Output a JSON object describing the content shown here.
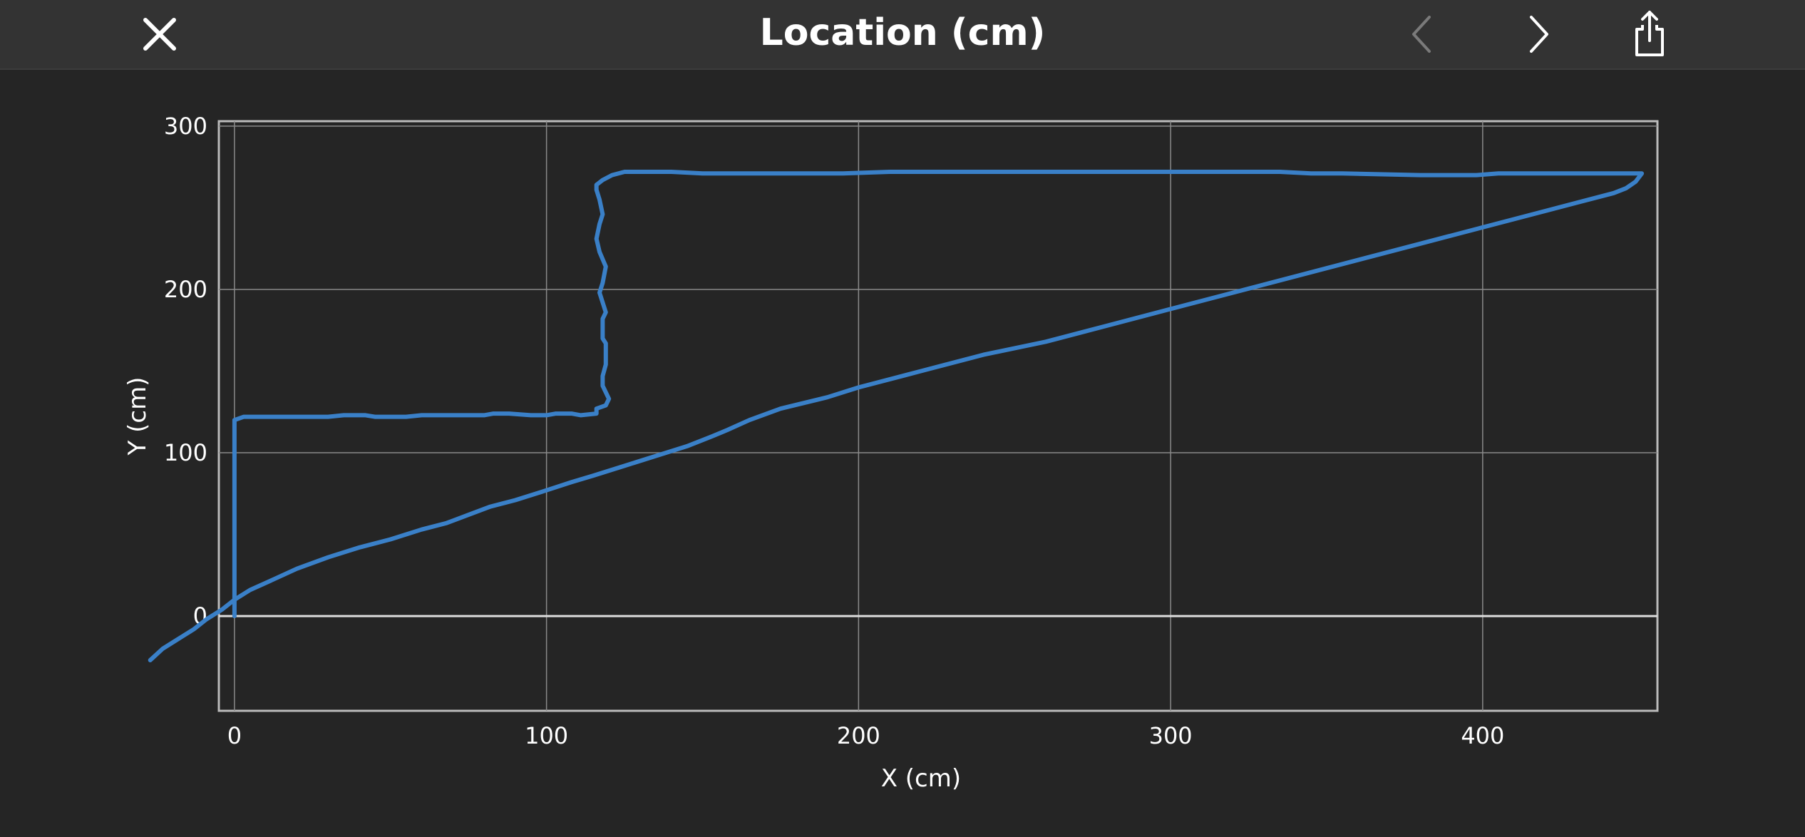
{
  "topbar": {
    "title": "Location (cm)",
    "close_icon": "close-icon",
    "prev_icon": "chevron-left-icon",
    "next_icon": "chevron-right-icon",
    "share_icon": "share-icon"
  },
  "colors": {
    "background": "#252525",
    "topbar": "#333333",
    "line": "#3a80c8",
    "grid": "#8a8a8a",
    "prev_disabled": "#7a7a7a"
  },
  "chart_data": {
    "type": "line",
    "xlabel": "X (cm)",
    "ylabel": "Y (cm)",
    "xlim": [
      -5,
      456
    ],
    "ylim": [
      -58,
      303
    ],
    "xticks": [
      0,
      100,
      200,
      300,
      400
    ],
    "yticks": [
      0,
      100,
      200,
      300
    ],
    "grid": true,
    "series": [
      {
        "points": [
          [
            0,
            0
          ],
          [
            0,
            120
          ],
          [
            3,
            122
          ],
          [
            30,
            122
          ],
          [
            35,
            123
          ],
          [
            42,
            123
          ],
          [
            45,
            122
          ],
          [
            55,
            122
          ],
          [
            60,
            123
          ],
          [
            80,
            123
          ],
          [
            83,
            124
          ],
          [
            88,
            124
          ],
          [
            95,
            123
          ],
          [
            100,
            123
          ],
          [
            103,
            124
          ],
          [
            108,
            124
          ],
          [
            111,
            123
          ],
          [
            116,
            124
          ],
          [
            116,
            127
          ],
          [
            119,
            129
          ],
          [
            120,
            133
          ],
          [
            118,
            141
          ],
          [
            118,
            147
          ],
          [
            119,
            154
          ],
          [
            119,
            167
          ],
          [
            118,
            170
          ],
          [
            118,
            182
          ],
          [
            119,
            186
          ],
          [
            117,
            198
          ],
          [
            118,
            204
          ],
          [
            119,
            214
          ],
          [
            117,
            223
          ],
          [
            116,
            231
          ],
          [
            117,
            240
          ],
          [
            118,
            246
          ],
          [
            117,
            255
          ],
          [
            116,
            261
          ],
          [
            116,
            264
          ],
          [
            118,
            267
          ],
          [
            121,
            270
          ],
          [
            125,
            272
          ],
          [
            140,
            272
          ],
          [
            150,
            271
          ],
          [
            170,
            271
          ],
          [
            195,
            271
          ],
          [
            210,
            272
          ],
          [
            300,
            272
          ],
          [
            335,
            272
          ],
          [
            345,
            271
          ],
          [
            355,
            271
          ],
          [
            380,
            270
          ],
          [
            398,
            270
          ],
          [
            405,
            271
          ],
          [
            440,
            271
          ],
          [
            451,
            271
          ],
          [
            449,
            266
          ],
          [
            446,
            262
          ],
          [
            442,
            259
          ],
          [
            430,
            253
          ],
          [
            420,
            248
          ],
          [
            400,
            238
          ],
          [
            380,
            228
          ],
          [
            360,
            218
          ],
          [
            320,
            198
          ],
          [
            300,
            188
          ],
          [
            280,
            178
          ],
          [
            260,
            168
          ],
          [
            240,
            160
          ],
          [
            220,
            150
          ],
          [
            200,
            140
          ],
          [
            190,
            134
          ],
          [
            175,
            127
          ],
          [
            165,
            120
          ],
          [
            158,
            114
          ],
          [
            153,
            110
          ],
          [
            145,
            104
          ],
          [
            135,
            98
          ],
          [
            125,
            92
          ],
          [
            115,
            86
          ],
          [
            108,
            82
          ],
          [
            100,
            77
          ],
          [
            90,
            71
          ],
          [
            82,
            67
          ],
          [
            75,
            62
          ],
          [
            68,
            57
          ],
          [
            60,
            53
          ],
          [
            50,
            47
          ],
          [
            40,
            42
          ],
          [
            30,
            36
          ],
          [
            20,
            29
          ],
          [
            12,
            22
          ],
          [
            5,
            16
          ],
          [
            0,
            10
          ],
          [
            -4,
            4
          ],
          [
            -9,
            -2
          ],
          [
            -13,
            -8
          ],
          [
            -18,
            -14
          ],
          [
            -23,
            -20
          ],
          [
            -27,
            -27
          ]
        ]
      }
    ]
  }
}
